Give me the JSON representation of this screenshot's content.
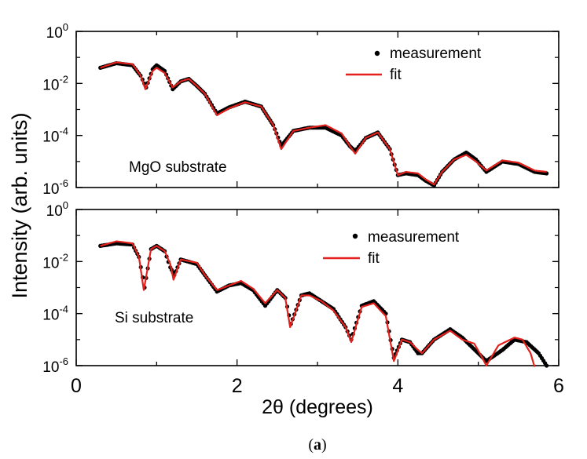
{
  "figure": {
    "caption_prefix": "(",
    "caption_bold": "a",
    "caption_suffix": ")"
  },
  "shared": {
    "ylabel": "Intensity (arb. units)",
    "xlabel": "2θ (degrees)",
    "xlim": [
      0,
      6
    ],
    "xticks": [
      "0",
      "2",
      "4",
      "6"
    ],
    "yticks": [
      {
        "base": "10",
        "exp": "-6"
      },
      {
        "base": "10",
        "exp": "-4"
      },
      {
        "base": "10",
        "exp": "-2"
      },
      {
        "base": "10",
        "exp": "0"
      }
    ]
  },
  "colors": {
    "measurement": "#000000",
    "fit": "#e3211c"
  },
  "chart_data": [
    {
      "type": "scatter",
      "panel": "top",
      "annotation": "MgO substrate",
      "x_scale": "linear",
      "y_scale": "log",
      "xlim": [
        0,
        6
      ],
      "ylim": [
        1e-06,
        1
      ],
      "legend": {
        "position": "top-right",
        "entries": [
          "measurement",
          "fit"
        ]
      },
      "series": [
        {
          "name": "measurement",
          "style": "dots",
          "x": [
            0.3,
            0.5,
            0.7,
            0.8,
            0.87,
            0.95,
            1.0,
            1.1,
            1.2,
            1.3,
            1.4,
            1.5,
            1.6,
            1.75,
            1.9,
            2.1,
            2.3,
            2.45,
            2.55,
            2.7,
            2.9,
            3.1,
            3.3,
            3.4,
            3.47,
            3.6,
            3.75,
            3.9,
            4.0,
            4.1,
            4.25,
            4.35,
            4.45,
            4.55,
            4.7,
            4.85,
            4.97,
            5.1,
            5.3,
            5.5,
            5.7,
            5.85
          ],
          "y": [
            0.04,
            0.06,
            0.05,
            0.02,
            0.007,
            0.035,
            0.05,
            0.03,
            0.006,
            0.012,
            0.015,
            0.008,
            0.004,
            0.0007,
            0.0012,
            0.002,
            0.0013,
            0.00025,
            4e-05,
            0.00015,
            0.0002,
            0.0002,
            0.0001,
            4e-05,
            2.5e-05,
            8e-05,
            0.00013,
            3e-05,
            3e-06,
            3.5e-06,
            3e-06,
            1.8e-06,
            1.2e-06,
            4e-06,
            1.2e-05,
            2.2e-05,
            1.2e-05,
            4e-06,
            1e-05,
            8e-06,
            4e-06,
            3.5e-06
          ]
        },
        {
          "name": "fit",
          "style": "line",
          "x": [
            0.3,
            0.5,
            0.7,
            0.8,
            0.86,
            0.95,
            1.0,
            1.1,
            1.2,
            1.3,
            1.4,
            1.5,
            1.6,
            1.75,
            1.9,
            2.1,
            2.3,
            2.45,
            2.55,
            2.7,
            2.9,
            3.1,
            3.3,
            3.4,
            3.47,
            3.6,
            3.75,
            3.9,
            4.0,
            4.1,
            4.25,
            4.35,
            4.45,
            4.55,
            4.7,
            4.85,
            4.97,
            5.1,
            5.3,
            5.5,
            5.7,
            5.85
          ],
          "y": [
            0.04,
            0.065,
            0.055,
            0.02,
            0.006,
            0.03,
            0.04,
            0.025,
            0.007,
            0.012,
            0.015,
            0.008,
            0.004,
            0.0006,
            0.0011,
            0.0019,
            0.0013,
            0.00025,
            3e-05,
            0.00015,
            0.0002,
            0.00025,
            0.00012,
            4e-05,
            2e-05,
            8e-05,
            0.00013,
            3e-05,
            3e-06,
            4e-06,
            3.5e-06,
            2e-06,
            1.3e-06,
            4e-06,
            1.2e-05,
            1.8e-05,
            1e-05,
            4.5e-06,
            1.1e-05,
            9e-06,
            4.5e-06,
            4e-06
          ]
        }
      ]
    },
    {
      "type": "scatter",
      "panel": "bottom",
      "annotation": "Si substrate",
      "x_scale": "linear",
      "y_scale": "log",
      "xlim": [
        0,
        6
      ],
      "ylim": [
        1e-06,
        1
      ],
      "legend": {
        "position": "top-right",
        "entries": [
          "measurement",
          "fit"
        ]
      },
      "series": [
        {
          "name": "measurement",
          "style": "dots",
          "x": [
            0.3,
            0.5,
            0.7,
            0.78,
            0.85,
            0.93,
            1.0,
            1.1,
            1.17,
            1.22,
            1.3,
            1.5,
            1.6,
            1.75,
            1.9,
            2.05,
            2.2,
            2.35,
            2.5,
            2.6,
            2.67,
            2.8,
            2.9,
            3.05,
            3.2,
            3.35,
            3.42,
            3.55,
            3.7,
            3.85,
            3.95,
            4.05,
            4.15,
            4.25,
            4.3,
            4.45,
            4.65,
            4.8,
            5.0,
            5.1,
            5.3,
            5.45,
            5.6,
            5.75,
            5.85
          ],
          "y": [
            0.04,
            0.05,
            0.045,
            0.015,
            0.001,
            0.03,
            0.04,
            0.025,
            0.006,
            0.003,
            0.012,
            0.008,
            0.003,
            0.0007,
            0.0012,
            0.0015,
            0.0008,
            0.0002,
            0.0008,
            0.0004,
            4e-05,
            0.0005,
            0.0006,
            0.0003,
            0.00015,
            3e-05,
            1e-05,
            0.0002,
            0.0003,
            0.0001,
            2e-06,
            1e-05,
            8e-06,
            3e-06,
            3e-06,
            1e-05,
            2.5e-05,
            1.2e-05,
            3e-06,
            1.5e-06,
            4e-06,
            1e-05,
            8e-06,
            3e-06,
            1e-06
          ]
        },
        {
          "name": "fit",
          "style": "line",
          "x": [
            0.3,
            0.5,
            0.7,
            0.78,
            0.84,
            0.93,
            1.0,
            1.1,
            1.17,
            1.21,
            1.3,
            1.5,
            1.6,
            1.75,
            1.9,
            2.05,
            2.2,
            2.35,
            2.5,
            2.6,
            2.66,
            2.8,
            2.9,
            3.05,
            3.2,
            3.35,
            3.42,
            3.55,
            3.7,
            3.85,
            3.95,
            4.05,
            4.15,
            4.25,
            4.3,
            4.45,
            4.65,
            4.8,
            4.95,
            5.05,
            5.1,
            5.25,
            5.45,
            5.55,
            5.65,
            5.7
          ],
          "y": [
            0.04,
            0.06,
            0.05,
            0.015,
            0.0008,
            0.03,
            0.04,
            0.025,
            0.008,
            0.002,
            0.012,
            0.009,
            0.003,
            0.0008,
            0.0012,
            0.0018,
            0.0009,
            0.00025,
            0.0008,
            0.0004,
            3e-05,
            0.0005,
            0.0005,
            0.0003,
            0.00013,
            3e-05,
            8e-06,
            0.00018,
            0.00025,
            8e-05,
            1.5e-06,
            1e-05,
            8e-06,
            4e-06,
            3e-06,
            1e-05,
            2.2e-05,
            1e-05,
            7e-06,
            2e-06,
            1e-06,
            6e-06,
            1.2e-05,
            1e-05,
            3e-06,
            9e-07
          ]
        }
      ]
    }
  ]
}
